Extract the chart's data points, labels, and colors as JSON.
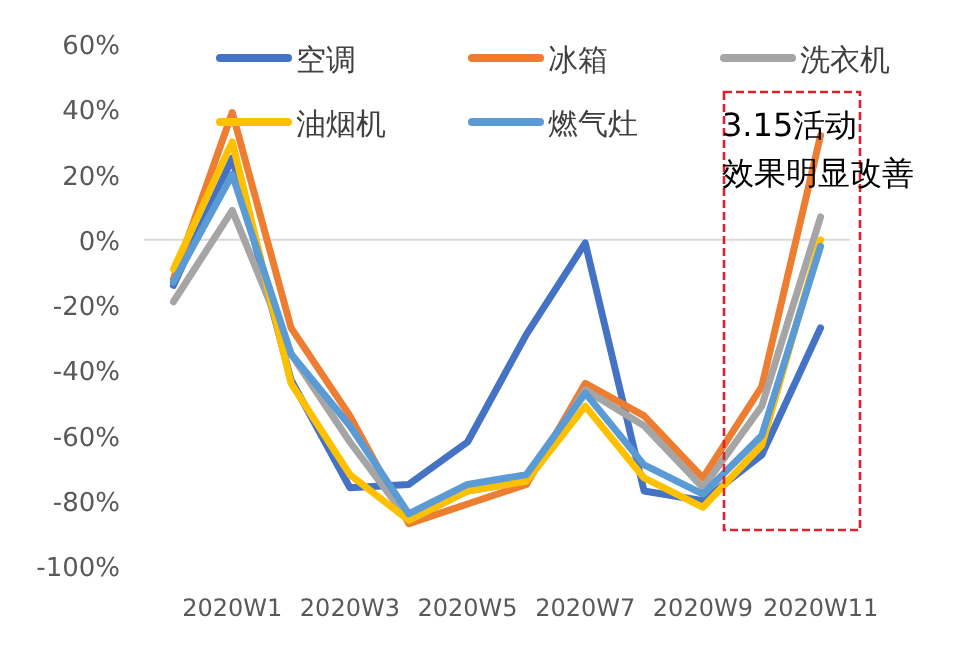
{
  "chart_data": {
    "type": "line",
    "categories": [
      null,
      "2020W1",
      null,
      "2020W3",
      null,
      "2020W5",
      null,
      "2020W7",
      null,
      "2020W9",
      null,
      "2020W11"
    ],
    "series": [
      {
        "name": "空调",
        "color": "#4472c4",
        "values": [
          -14,
          25,
          -43,
          -76,
          -75,
          -62,
          -29,
          -1,
          -77,
          -80,
          -66,
          -27
        ]
      },
      {
        "name": "冰箱",
        "color": "#ed7d31",
        "values": [
          -12,
          39,
          -27,
          -54,
          -87,
          -81,
          -75,
          -44,
          -54,
          -73,
          -45,
          32
        ]
      },
      {
        "name": "洗衣机",
        "color": "#a5a5a5",
        "values": [
          -19,
          9,
          -35,
          -62,
          -86,
          -77,
          -74,
          -46,
          -57,
          -76,
          -51,
          7
        ]
      },
      {
        "name": "油烟机",
        "color": "#ffc000",
        "values": [
          -9,
          30,
          -44,
          -72,
          -86,
          -77,
          -74,
          -51,
          -73,
          -82,
          -63,
          0
        ]
      },
      {
        "name": "燃气灶",
        "color": "#5b9bd5",
        "values": [
          -13,
          20,
          -35,
          -57,
          -84,
          -75,
          -72,
          -47,
          -69,
          -78,
          -60,
          -2
        ]
      }
    ],
    "ylim": [
      -100,
      60
    ],
    "yticks": [
      {
        "value": -100,
        "label": "-100%"
      },
      {
        "value": -80,
        "label": "-80%"
      },
      {
        "value": -60,
        "label": "-60%"
      },
      {
        "value": -40,
        "label": "-40%"
      },
      {
        "value": -20,
        "label": "-20%"
      },
      {
        "value": 0,
        "label": "0%"
      },
      {
        "value": 20,
        "label": "20%"
      },
      {
        "value": 40,
        "label": "40%"
      },
      {
        "value": 60,
        "label": "60%"
      }
    ],
    "ref_lines": [
      {
        "axis": "y",
        "value": 0,
        "color": "#d9d9d9"
      }
    ],
    "legend": "top",
    "grid": false,
    "marker": "none",
    "line_style": "solid",
    "annotations": [
      "3.15活动",
      "效果明显改善"
    ]
  }
}
